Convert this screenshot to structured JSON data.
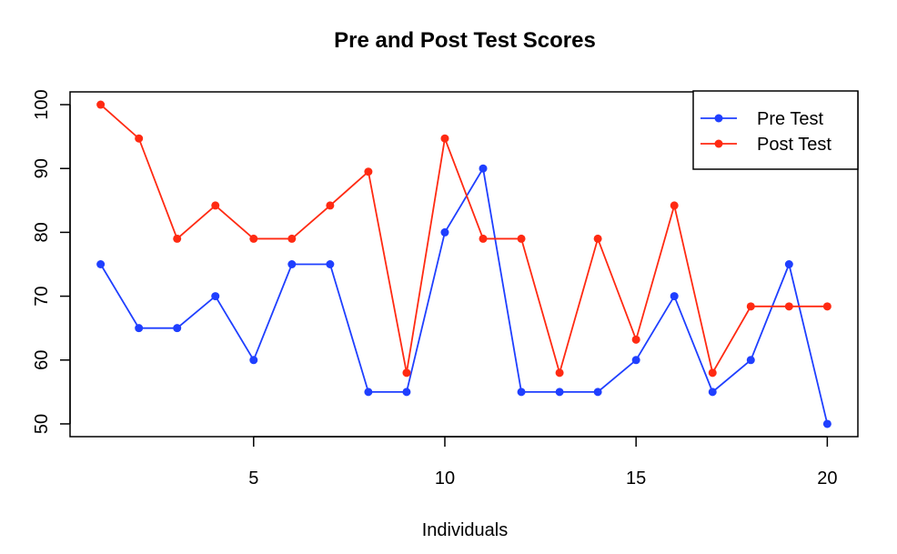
{
  "chart_data": {
    "type": "line",
    "title": "Pre and Post Test Scores",
    "xlabel": "Individuals",
    "ylabel": "",
    "x": [
      1,
      2,
      3,
      4,
      5,
      6,
      7,
      8,
      9,
      10,
      11,
      12,
      13,
      14,
      15,
      16,
      17,
      18,
      19,
      20
    ],
    "xlim": [
      0.2,
      20.8
    ],
    "ylim": [
      48,
      102
    ],
    "xticks": [
      5,
      10,
      15,
      20
    ],
    "yticks": [
      50,
      60,
      70,
      80,
      90,
      100
    ],
    "grid": false,
    "legend_position": "top-right",
    "series": [
      {
        "name": "Pre Test",
        "color": "#1f3fff",
        "values": [
          75,
          65,
          65,
          70,
          60,
          75,
          75,
          55,
          55,
          80,
          90,
          55,
          55,
          55,
          60,
          70,
          55,
          60,
          75,
          50
        ]
      },
      {
        "name": "Post Test",
        "color": "#ff2a12",
        "values": [
          100,
          94.7,
          79,
          84.2,
          79,
          79,
          84.2,
          89.5,
          58,
          94.7,
          79,
          79,
          58,
          79,
          63.2,
          84.2,
          58,
          68.4,
          68.4,
          68.4
        ]
      }
    ]
  }
}
